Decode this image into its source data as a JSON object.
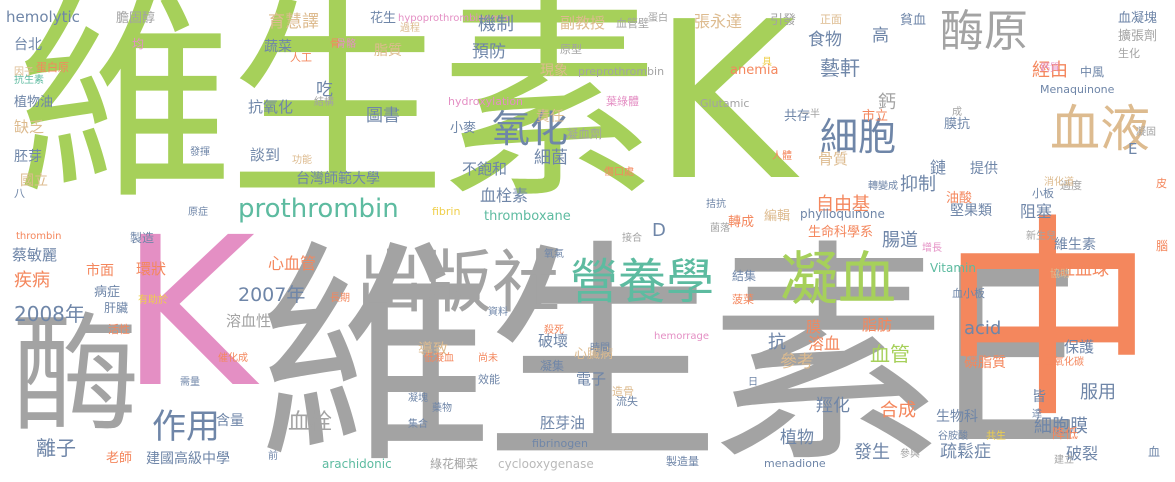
{
  "colors": {
    "green": "#a6d05a",
    "gray": "#a3a3a3",
    "pink": "#e48fc4",
    "orange": "#f4875d",
    "teal": "#5dbba0",
    "tan": "#ddbb8f",
    "slate": "#6f86a8",
    "yellow": "#efcf4a",
    "lightgray": "#b9b9b9"
  },
  "words": [
    {
      "text": "維生素K",
      "color": "green"
    },
    {
      "text": "維生素E",
      "color": "gray"
    },
    {
      "text": "K",
      "color": "pink"
    },
    {
      "text": "中",
      "color": "orange"
    },
    {
      "text": "酶",
      "color": "gray"
    },
    {
      "text": "凝血",
      "color": "gray"
    },
    {
      "text": "出版社",
      "color": "gray"
    },
    {
      "text": "營養學",
      "color": "teal"
    },
    {
      "text": "凝血",
      "color": "green"
    },
    {
      "text": "酶原",
      "color": "gray"
    },
    {
      "text": "血液",
      "color": "tan"
    },
    {
      "text": "細胞",
      "color": "slate"
    },
    {
      "text": "prothrombin",
      "color": "teal"
    },
    {
      "text": "氧化",
      "color": "slate"
    },
    {
      "text": "作用",
      "color": "slate"
    },
    {
      "text": "hemolytic",
      "color": "slate"
    },
    {
      "text": "膽固醇",
      "color": "gray"
    },
    {
      "text": "花生",
      "color": "slate"
    },
    {
      "text": "hypoprothrombinemia",
      "color": "pink"
    },
    {
      "text": "蛋白",
      "color": "gray"
    },
    {
      "text": "血凝塊",
      "color": "slate"
    },
    {
      "text": "擴張劑",
      "color": "gray"
    },
    {
      "text": "生化",
      "color": "gray"
    },
    {
      "text": "台北",
      "color": "slate"
    },
    {
      "text": "均",
      "color": "pink"
    },
    {
      "text": "抗生素",
      "color": "teal"
    },
    {
      "text": "植物油",
      "color": "slate"
    },
    {
      "text": "缺乏",
      "color": "tan"
    },
    {
      "text": "胚芽",
      "color": "slate"
    },
    {
      "text": "國立",
      "color": "tan"
    },
    {
      "text": "蔡敏麗",
      "color": "slate"
    },
    {
      "text": "疾病",
      "color": "orange"
    },
    {
      "text": "2008年",
      "color": "slate"
    },
    {
      "text": "離子",
      "color": "slate"
    },
    {
      "text": "老師",
      "color": "orange"
    },
    {
      "text": "建國高級中學",
      "color": "slate"
    },
    {
      "text": "育慧譯",
      "color": "tan"
    },
    {
      "text": "機制",
      "color": "slate"
    },
    {
      "text": "副教授",
      "color": "tan"
    },
    {
      "text": "張永達",
      "color": "tan"
    },
    {
      "text": "引發",
      "color": "gray"
    },
    {
      "text": "正面",
      "color": "tan"
    },
    {
      "text": "高",
      "color": "slate"
    },
    {
      "text": "貧血",
      "color": "slate"
    },
    {
      "text": "食物",
      "color": "slate"
    },
    {
      "text": "藝軒",
      "color": "slate"
    },
    {
      "text": "經由",
      "color": "orange"
    },
    {
      "text": "中風",
      "color": "slate"
    },
    {
      "text": "Menaquinone",
      "color": "slate"
    },
    {
      "text": "圖書",
      "color": "slate"
    },
    {
      "text": "小麥",
      "color": "slate"
    },
    {
      "text": "責任",
      "color": "tan"
    },
    {
      "text": "不飽和",
      "color": "slate"
    },
    {
      "text": "細菌",
      "color": "slate"
    },
    {
      "text": "血栓素",
      "color": "slate"
    },
    {
      "text": "thromboxane",
      "color": "teal"
    },
    {
      "text": "台灣師範大學",
      "color": "slate"
    },
    {
      "text": "談到",
      "color": "slate"
    },
    {
      "text": "抗氧化",
      "color": "slate"
    },
    {
      "text": "心血管",
      "color": "orange"
    },
    {
      "text": "2007年",
      "color": "slate"
    },
    {
      "text": "溶血性",
      "color": "gray"
    },
    {
      "text": "血栓",
      "color": "gray"
    },
    {
      "text": "含量",
      "color": "slate"
    },
    {
      "text": "arachidonic",
      "color": "teal"
    },
    {
      "text": "cyclooxygenase",
      "color": "lightgray"
    },
    {
      "text": "製造量",
      "color": "slate"
    },
    {
      "text": "骨質",
      "color": "tan"
    },
    {
      "text": "自由基",
      "color": "orange"
    },
    {
      "text": "抑制",
      "color": "slate"
    },
    {
      "text": "提供",
      "color": "slate"
    },
    {
      "text": "堅果類",
      "color": "slate"
    },
    {
      "text": "阻塞",
      "color": "slate"
    },
    {
      "text": "腸道",
      "color": "slate"
    },
    {
      "text": "生命科學系",
      "color": "orange"
    },
    {
      "text": "維生素",
      "color": "slate"
    },
    {
      "text": "紅血球",
      "color": "orange"
    },
    {
      "text": "Vitamin",
      "color": "teal"
    },
    {
      "text": "血管",
      "color": "green"
    },
    {
      "text": "acid",
      "color": "slate"
    },
    {
      "text": "保護",
      "color": "slate"
    },
    {
      "text": "磷脂質",
      "color": "orange"
    },
    {
      "text": "參考",
      "color": "tan"
    },
    {
      "text": "羥化",
      "color": "slate"
    },
    {
      "text": "合成",
      "color": "orange"
    },
    {
      "text": "生物科",
      "color": "slate"
    },
    {
      "text": "植物",
      "color": "slate"
    },
    {
      "text": "發生",
      "color": "slate"
    },
    {
      "text": "細胞膜",
      "color": "slate"
    },
    {
      "text": "服用",
      "color": "slate"
    },
    {
      "text": "疏鬆症",
      "color": "slate"
    },
    {
      "text": "破裂",
      "color": "slate"
    },
    {
      "text": "皆",
      "color": "slate"
    },
    {
      "text": "膜",
      "color": "orange"
    },
    {
      "text": "編輯",
      "color": "tan"
    },
    {
      "text": "anemia",
      "color": "orange"
    },
    {
      "text": "共存",
      "color": "slate"
    },
    {
      "text": "市立",
      "color": "orange"
    },
    {
      "text": "膜抗",
      "color": "slate"
    },
    {
      "text": "油酸",
      "color": "orange"
    },
    {
      "text": "小板",
      "color": "slate"
    },
    {
      "text": "phylloquinone",
      "color": "slate"
    },
    {
      "text": "hydroxylation",
      "color": "pink"
    },
    {
      "text": "Glutamic",
      "color": "gray"
    },
    {
      "text": "preprothrombin",
      "color": "gray"
    },
    {
      "text": "葉綠體",
      "color": "pink"
    },
    {
      "text": "凝血劑",
      "color": "gray"
    },
    {
      "text": "血管壁",
      "color": "gray"
    },
    {
      "text": "原型",
      "color": "gray"
    },
    {
      "text": "現象",
      "color": "tan"
    },
    {
      "text": "預防",
      "color": "slate"
    },
    {
      "text": "脂質",
      "color": "tan"
    },
    {
      "text": "蔬菜",
      "color": "slate"
    },
    {
      "text": "吃",
      "color": "slate"
    },
    {
      "text": "人工",
      "color": "orange"
    },
    {
      "text": "結構",
      "color": "gray"
    },
    {
      "text": "蛋白原",
      "color": "orange"
    },
    {
      "text": "fibrin",
      "color": "yellow"
    },
    {
      "text": "thrombin",
      "color": "orange"
    },
    {
      "text": "製造",
      "color": "slate"
    },
    {
      "text": "原症",
      "color": "slate"
    },
    {
      "text": "環狀",
      "color": "orange"
    },
    {
      "text": "有助於",
      "color": "yellow"
    },
    {
      "text": "病症",
      "color": "slate"
    },
    {
      "text": "肝臟",
      "color": "slate"
    },
    {
      "text": "活性",
      "color": "orange"
    },
    {
      "text": "市面",
      "color": "orange"
    },
    {
      "text": "長期",
      "color": "orange"
    },
    {
      "text": "破壞",
      "color": "slate"
    },
    {
      "text": "導致",
      "color": "tan"
    },
    {
      "text": "胚芽油",
      "color": "slate"
    },
    {
      "text": "fibrinogen",
      "color": "slate"
    },
    {
      "text": "綠花椰菜",
      "color": "gray"
    },
    {
      "text": "電子",
      "color": "slate"
    },
    {
      "text": "抗",
      "color": "slate"
    },
    {
      "text": "溶血",
      "color": "orange"
    },
    {
      "text": "脂肪",
      "color": "orange"
    },
    {
      "text": "hemorrage",
      "color": "pink"
    },
    {
      "text": "心臟病",
      "color": "tan"
    },
    {
      "text": "轉成",
      "color": "orange"
    },
    {
      "text": "菠菜",
      "color": "orange"
    },
    {
      "text": "結集",
      "color": "slate"
    },
    {
      "text": "傷口處",
      "color": "orange"
    },
    {
      "text": "菌落",
      "color": "gray"
    },
    {
      "text": "menadione",
      "color": "slate"
    },
    {
      "text": "參與",
      "color": "gray"
    },
    {
      "text": "建立",
      "color": "gray"
    },
    {
      "text": "二氧化碳",
      "color": "orange"
    },
    {
      "text": "谷胺酸",
      "color": "slate"
    },
    {
      "text": "降低",
      "color": "orange"
    },
    {
      "text": "共生",
      "color": "yellow"
    },
    {
      "text": "過度",
      "color": "gray"
    },
    {
      "text": "E",
      "color": "slate"
    },
    {
      "text": "D",
      "color": "slate"
    },
    {
      "text": "一半",
      "color": "gray"
    },
    {
      "text": "轉變成",
      "color": "slate"
    },
    {
      "text": "新生兒",
      "color": "gray"
    },
    {
      "text": "凝固",
      "color": "gray"
    },
    {
      "text": "消化道",
      "color": "tan"
    },
    {
      "text": "增長",
      "color": "pink"
    },
    {
      "text": "協助",
      "color": "tan"
    },
    {
      "text": "因子",
      "color": "tan"
    },
    {
      "text": "鈣",
      "color": "gray"
    },
    {
      "text": "血小板",
      "color": "slate"
    },
    {
      "text": "八",
      "color": "slate"
    },
    {
      "text": "鈣質",
      "color": "pink"
    },
    {
      "text": "人體",
      "color": "orange"
    },
    {
      "text": "功能",
      "color": "tan"
    },
    {
      "text": "發揮",
      "color": "slate"
    },
    {
      "text": "過程",
      "color": "tan"
    },
    {
      "text": "骨骼",
      "color": "pink"
    },
    {
      "text": "具",
      "color": "yellow"
    },
    {
      "text": "成",
      "color": "gray"
    },
    {
      "text": "腦",
      "color": "orange"
    },
    {
      "text": "皮",
      "color": "orange"
    },
    {
      "text": "血",
      "color": "slate"
    },
    {
      "text": "鏈",
      "color": "slate"
    },
    {
      "text": "拮抗",
      "color": "slate"
    },
    {
      "text": "接合",
      "color": "gray"
    },
    {
      "text": "氧氣",
      "color": "slate"
    },
    {
      "text": "資料",
      "color": "slate"
    },
    {
      "text": "殺死",
      "color": "orange"
    },
    {
      "text": "時間",
      "color": "slate"
    },
    {
      "text": "尚未",
      "color": "orange"
    },
    {
      "text": "效能",
      "color": "slate"
    },
    {
      "text": "低凝血",
      "color": "orange"
    },
    {
      "text": "凝集",
      "color": "slate"
    },
    {
      "text": "凝塊",
      "color": "slate"
    },
    {
      "text": "藥物",
      "color": "slate"
    },
    {
      "text": "集合",
      "color": "slate"
    },
    {
      "text": "造骨",
      "color": "tan"
    },
    {
      "text": "流失",
      "color": "slate"
    },
    {
      "text": "日",
      "color": "slate"
    },
    {
      "text": "達",
      "color": "slate"
    },
    {
      "text": "催化成",
      "color": "orange"
    },
    {
      "text": "需量",
      "color": "slate"
    },
    {
      "text": "前",
      "color": "slate"
    },
    {
      "text": "骨",
      "color": "orange"
    }
  ]
}
